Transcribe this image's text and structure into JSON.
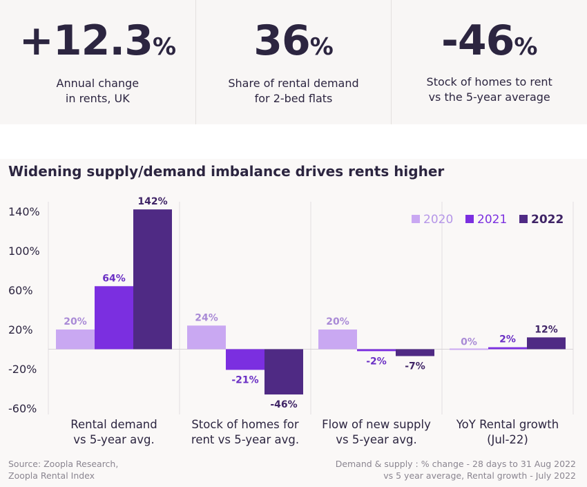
{
  "stats": [
    {
      "value": "+12.3",
      "unit": "%",
      "label_line1": "Annual change",
      "label_line2": "in rents, UK"
    },
    {
      "value": "36",
      "unit": "%",
      "label_line1": "Share of rental demand",
      "label_line2": "for 2-bed flats"
    },
    {
      "value": "-46",
      "unit": "%",
      "label_line1": "Stock of homes to rent",
      "label_line2": "vs the 5-year average"
    }
  ],
  "chart_data": {
    "type": "bar",
    "title": "Widening supply/demand imbalance drives rents higher",
    "categories": [
      [
        "Rental demand",
        "vs 5-year avg."
      ],
      [
        "Stock of homes for",
        "rent vs 5-year avg."
      ],
      [
        "Flow of new supply",
        "vs 5-year avg."
      ],
      [
        "YoY Rental growth",
        "(Jul-22)"
      ]
    ],
    "series": [
      {
        "name": "2020",
        "color": "#c9a8f2",
        "values": [
          20,
          24,
          20,
          0
        ],
        "labels": [
          "20%",
          "24%",
          "20%",
          "0%"
        ]
      },
      {
        "name": "2021",
        "color": "#7b2fe0",
        "values": [
          64,
          -21,
          -2,
          2
        ],
        "labels": [
          "64%",
          "-21%",
          "-2%",
          "2%"
        ]
      },
      {
        "name": "2022",
        "color": "#4f2a84",
        "values": [
          142,
          -46,
          -7,
          12
        ],
        "labels": [
          "142%",
          "-46%",
          "-7%",
          "12%"
        ]
      }
    ],
    "yticks": [
      "140%",
      "100%",
      "60%",
      "20%",
      "-20%",
      "-60%"
    ],
    "ytick_values": [
      140,
      100,
      60,
      20,
      -20,
      -60
    ],
    "ylim": [
      -60,
      140
    ],
    "legend_position": "top-right",
    "label_color": "#2c2540"
  },
  "footer": {
    "source_line1": "Source: Zoopla Research,",
    "source_line2": "Zoopla Rental Index",
    "note_line1": "Demand & supply : % change - 28 days to 31 Aug 2022",
    "note_line2": "vs 5 year average, Rental growth - July 2022"
  }
}
